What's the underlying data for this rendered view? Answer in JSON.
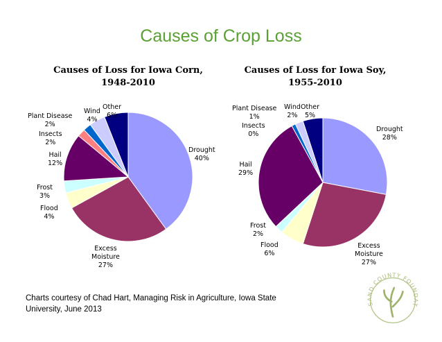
{
  "page": {
    "title": "Causes of Crop Loss"
  },
  "credit": {
    "line1": "Charts courtesy of Chad Hart, Managing Risk in Agriculture, Iowa State",
    "line2": "University, June 2013"
  },
  "logo": {
    "text": "SAND COUNTY FOUNDATION"
  },
  "chart_data": [
    {
      "type": "pie",
      "title_line1": "Causes of Loss for Iowa Corn,",
      "title_line2": "1948-2010",
      "start_category": "Drought",
      "direction": "clockwise",
      "slices": [
        {
          "label": "Drought",
          "value": 40,
          "display": "40%",
          "color": "#9999ff"
        },
        {
          "label_line1": "Excess",
          "label_line2": "Moisture",
          "label": "Excess Moisture",
          "value": 27,
          "display": "27%",
          "color": "#993366"
        },
        {
          "label": "Flood",
          "value": 4,
          "display": "4%",
          "color": "#ffffcc"
        },
        {
          "label": "Frost",
          "value": 3,
          "display": "3%",
          "color": "#ccffff"
        },
        {
          "label": "Hail",
          "value": 12,
          "display": "12%",
          "color": "#660066"
        },
        {
          "label": "Insects",
          "value": 2,
          "display": "2%",
          "color": "#ff8080"
        },
        {
          "label": "Plant Disease",
          "value": 2,
          "display": "2%",
          "color": "#0066cc"
        },
        {
          "label": "Wind",
          "value": 4,
          "display": "4%",
          "color": "#ccccff"
        },
        {
          "label": "Other",
          "value": 6,
          "display": "6%",
          "color": "#000080"
        }
      ]
    },
    {
      "type": "pie",
      "title_line1": "Causes of Loss for Iowa Soy,",
      "title_line2": "1955-2010",
      "start_category": "Drought",
      "direction": "clockwise",
      "slices": [
        {
          "label": "Drought",
          "value": 28,
          "display": "28%",
          "color": "#9999ff"
        },
        {
          "label_line1": "Excess",
          "label_line2": "Moisture",
          "label": "Excess Moisture",
          "value": 27,
          "display": "27%",
          "color": "#993366"
        },
        {
          "label": "Flood",
          "value": 6,
          "display": "6%",
          "color": "#ffffcc"
        },
        {
          "label": "Frost",
          "value": 2,
          "display": "2%",
          "color": "#ccffff"
        },
        {
          "label": "Hail",
          "value": 29,
          "display": "29%",
          "color": "#660066"
        },
        {
          "label": "Insects",
          "value": 0,
          "display": "0%",
          "color": "#ff8080"
        },
        {
          "label": "Plant Disease",
          "value": 1,
          "display": "1%",
          "color": "#0066cc"
        },
        {
          "label": "Wind",
          "value": 2,
          "display": "2%",
          "color": "#ccccff"
        },
        {
          "label": "Other",
          "value": 5,
          "display": "5%",
          "color": "#000080"
        }
      ]
    }
  ]
}
